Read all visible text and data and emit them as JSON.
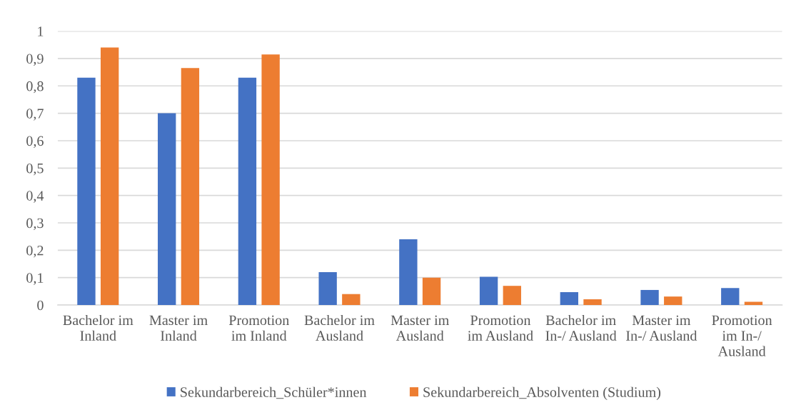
{
  "chart_data": {
    "type": "bar",
    "categories": [
      "Bachelor im\nInland",
      "Master im\nInland",
      "Promotion\nim Inland",
      "Bachelor im\nAusland",
      "Master im\nAusland",
      "Promotion\nim Ausland",
      "Bachelor im\nIn-/ Ausland",
      "Master im\nIn-/ Ausland",
      "Promotion\nim In-/\nAusland"
    ],
    "series": [
      {
        "name": "Sekundarbereich_Schüler*innen",
        "color": "#4472c4",
        "values": [
          0.83,
          0.7,
          0.83,
          0.12,
          0.24,
          0.103,
          0.047,
          0.055,
          0.062
        ]
      },
      {
        "name": "Sekundarbereich_Absolventen (Studium)",
        "color": "#ed7d31",
        "values": [
          0.94,
          0.865,
          0.915,
          0.04,
          0.1,
          0.07,
          0.021,
          0.031,
          0.012
        ]
      }
    ],
    "ylim": [
      0,
      1
    ],
    "yticks": [
      0,
      {
        "value": 0.1,
        "label": "0,1"
      },
      {
        "value": 0.2,
        "label": "0,2"
      },
      {
        "value": 0.3,
        "label": "0,3"
      },
      {
        "value": 0.4,
        "label": "0,4"
      },
      {
        "value": 0.5,
        "label": "0,5"
      },
      {
        "value": 0.6,
        "label": "0,6"
      },
      {
        "value": 0.7,
        "label": "0,7"
      },
      {
        "value": 0.8,
        "label": "0,8"
      },
      {
        "value": 0.9,
        "label": "0,9"
      },
      1
    ],
    "grid": "y",
    "legend": "bottom"
  }
}
